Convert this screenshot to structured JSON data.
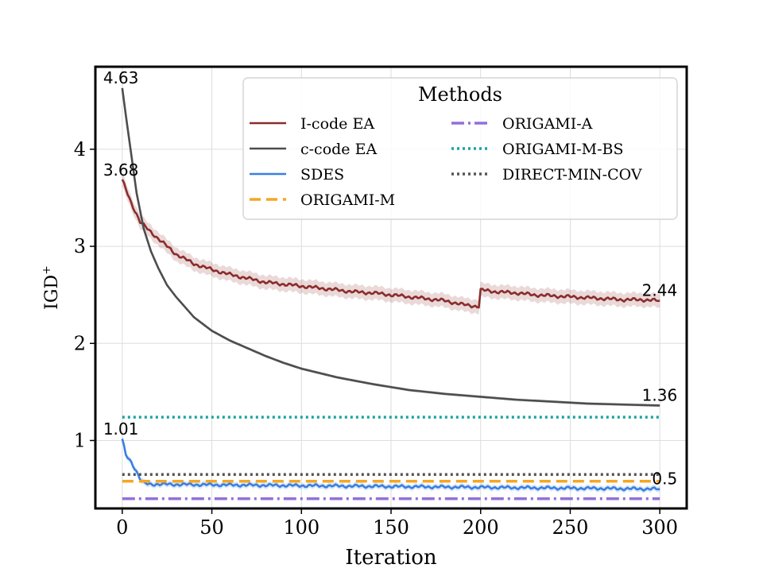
{
  "chart_data": {
    "type": "line",
    "xlabel": "Iteration",
    "ylabel_main": "IGD",
    "ylabel_sup": "+",
    "xlim": [
      -15,
      315
    ],
    "ylim": [
      0.3,
      4.85
    ],
    "xticks": [
      0,
      50,
      100,
      150,
      200,
      250,
      300
    ],
    "yticks": [
      1,
      2,
      3,
      4
    ],
    "grid": true,
    "legend": {
      "title": "Methods",
      "placement": "top-right",
      "columns": 2
    },
    "series": [
      {
        "name": "I-code EA",
        "color": "#8b2c2c",
        "style": "solid",
        "band": true,
        "points": [
          [
            0,
            3.68
          ],
          [
            5,
            3.45
          ],
          [
            10,
            3.25
          ],
          [
            20,
            3.08
          ],
          [
            30,
            2.92
          ],
          [
            40,
            2.82
          ],
          [
            50,
            2.76
          ],
          [
            60,
            2.71
          ],
          [
            70,
            2.67
          ],
          [
            80,
            2.63
          ],
          [
            90,
            2.61
          ],
          [
            100,
            2.59
          ],
          [
            110,
            2.57
          ],
          [
            120,
            2.55
          ],
          [
            130,
            2.53
          ],
          [
            140,
            2.52
          ],
          [
            150,
            2.5
          ],
          [
            160,
            2.48
          ],
          [
            170,
            2.46
          ],
          [
            180,
            2.44
          ],
          [
            190,
            2.4
          ],
          [
            199,
            2.38
          ],
          [
            200,
            2.55
          ],
          [
            210,
            2.53
          ],
          [
            220,
            2.52
          ],
          [
            230,
            2.5
          ],
          [
            240,
            2.49
          ],
          [
            250,
            2.48
          ],
          [
            260,
            2.47
          ],
          [
            270,
            2.46
          ],
          [
            280,
            2.45
          ],
          [
            290,
            2.45
          ],
          [
            300,
            2.44
          ]
        ]
      },
      {
        "name": "c-code EA",
        "color": "#4d4d4d",
        "style": "solid",
        "band": true,
        "points": [
          [
            0,
            4.63
          ],
          [
            2,
            4.35
          ],
          [
            5,
            3.95
          ],
          [
            8,
            3.55
          ],
          [
            12,
            3.18
          ],
          [
            16,
            2.95
          ],
          [
            20,
            2.78
          ],
          [
            25,
            2.6
          ],
          [
            30,
            2.48
          ],
          [
            40,
            2.27
          ],
          [
            50,
            2.13
          ],
          [
            60,
            2.03
          ],
          [
            70,
            1.95
          ],
          [
            80,
            1.87
          ],
          [
            90,
            1.8
          ],
          [
            100,
            1.74
          ],
          [
            120,
            1.65
          ],
          [
            140,
            1.58
          ],
          [
            160,
            1.52
          ],
          [
            180,
            1.48
          ],
          [
            200,
            1.45
          ],
          [
            220,
            1.42
          ],
          [
            240,
            1.4
          ],
          [
            260,
            1.38
          ],
          [
            280,
            1.37
          ],
          [
            300,
            1.36
          ]
        ]
      },
      {
        "name": "SDES",
        "color": "#3a7fe0",
        "style": "solid",
        "band": true,
        "points": [
          [
            0,
            1.01
          ],
          [
            2,
            0.85
          ],
          [
            5,
            0.78
          ],
          [
            8,
            0.68
          ],
          [
            10,
            0.6
          ],
          [
            12,
            0.56
          ],
          [
            15,
            0.55
          ],
          [
            300,
            0.5
          ]
        ]
      },
      {
        "name": "ORIGAMI-M",
        "color": "#f5a623",
        "style": "dashed",
        "value": 0.58
      },
      {
        "name": "ORIGAMI-A",
        "color": "#9370db",
        "style": "dashdot",
        "value": 0.4
      },
      {
        "name": "ORIGAMI-M-BS",
        "color": "#1aa3a3",
        "style": "dotted",
        "value": 1.24
      },
      {
        "name": "DIRECT-MIN-COV",
        "color": "#555555",
        "style": "dotted",
        "value": 0.65
      }
    ],
    "annotations": [
      {
        "text": "4.63",
        "x": 0,
        "y": 4.63,
        "align": "start"
      },
      {
        "text": "3.68",
        "x": 0,
        "y": 3.68,
        "align": "start"
      },
      {
        "text": "1.01",
        "x": 0,
        "y": 1.01,
        "align": "start"
      },
      {
        "text": "2.44",
        "x": 300,
        "y": 2.44,
        "align": "end"
      },
      {
        "text": "1.36",
        "x": 300,
        "y": 1.36,
        "align": "end"
      },
      {
        "text": "0.5",
        "x": 300,
        "y": 0.5,
        "align": "end"
      }
    ]
  }
}
